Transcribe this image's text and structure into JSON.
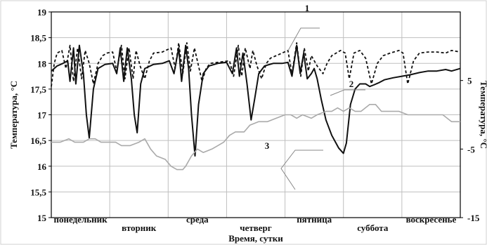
{
  "chart_data": {
    "type": "line",
    "xlabel": "Время, сутки",
    "ylabel_left": "Температура, °C",
    "ylabel_right": "Температура, °C",
    "y_left": {
      "min": 15,
      "max": 19,
      "ticks": [
        "15",
        "15,5",
        "16",
        "16,5",
        "17",
        "17,5",
        "18",
        "18,5",
        "19"
      ]
    },
    "y_right": {
      "min": -15,
      "max": 15,
      "ticks": [
        "-15",
        "-5",
        "5"
      ]
    },
    "x": {
      "min": 0,
      "max": 7
    },
    "days": [
      "понедельник",
      "вторник",
      "среда",
      "четверг",
      "пятница",
      "суббота",
      "воскресенье"
    ],
    "grid": true,
    "series": [
      {
        "name": "1",
        "axis": "left",
        "style": "dashed",
        "color": "#111111",
        "points": [
          [
            0,
            17.55
          ],
          [
            0.05,
            18.0
          ],
          [
            0.1,
            18.2
          ],
          [
            0.18,
            18.25
          ],
          [
            0.25,
            17.9
          ],
          [
            0.32,
            18.35
          ],
          [
            0.38,
            17.65
          ],
          [
            0.45,
            18.3
          ],
          [
            0.52,
            17.7
          ],
          [
            0.58,
            18.25
          ],
          [
            0.65,
            18.0
          ],
          [
            0.72,
            17.6
          ],
          [
            0.8,
            18.0
          ],
          [
            0.88,
            18.15
          ],
          [
            0.95,
            18.2
          ],
          [
            1.05,
            18.22
          ],
          [
            1.12,
            17.85
          ],
          [
            1.2,
            18.35
          ],
          [
            1.26,
            17.7
          ],
          [
            1.33,
            18.3
          ],
          [
            1.4,
            17.7
          ],
          [
            1.45,
            18.25
          ],
          [
            1.52,
            17.95
          ],
          [
            1.6,
            17.7
          ],
          [
            1.68,
            18.05
          ],
          [
            1.75,
            18.2
          ],
          [
            1.9,
            18.22
          ],
          [
            2.05,
            18.3
          ],
          [
            2.12,
            17.9
          ],
          [
            2.18,
            18.4
          ],
          [
            2.25,
            17.8
          ],
          [
            2.32,
            18.4
          ],
          [
            2.38,
            17.85
          ],
          [
            2.45,
            18.3
          ],
          [
            2.52,
            17.95
          ],
          [
            2.58,
            17.65
          ],
          [
            2.65,
            17.9
          ],
          [
            2.72,
            18.0
          ],
          [
            2.85,
            18.02
          ],
          [
            3.05,
            18.05
          ],
          [
            3.12,
            17.75
          ],
          [
            3.2,
            18.35
          ],
          [
            3.26,
            17.75
          ],
          [
            3.32,
            18.3
          ],
          [
            3.4,
            17.9
          ],
          [
            3.45,
            18.25
          ],
          [
            3.52,
            17.95
          ],
          [
            3.6,
            17.7
          ],
          [
            3.68,
            18.0
          ],
          [
            3.75,
            18.1
          ],
          [
            3.95,
            18.2
          ],
          [
            4.05,
            18.25
          ],
          [
            4.12,
            17.8
          ],
          [
            4.2,
            18.4
          ],
          [
            4.27,
            17.75
          ],
          [
            4.33,
            18.3
          ],
          [
            4.4,
            17.85
          ],
          [
            4.45,
            18.15
          ],
          [
            4.55,
            17.95
          ],
          [
            4.65,
            17.8
          ],
          [
            4.72,
            18.0
          ],
          [
            4.8,
            18.15
          ],
          [
            4.95,
            18.25
          ],
          [
            5.03,
            18.2
          ],
          [
            5.1,
            17.7
          ],
          [
            5.18,
            18.2
          ],
          [
            5.28,
            18.25
          ],
          [
            5.38,
            18.1
          ],
          [
            5.48,
            17.6
          ],
          [
            5.58,
            18.0
          ],
          [
            5.68,
            18.15
          ],
          [
            5.8,
            18.2
          ],
          [
            5.95,
            18.25
          ],
          [
            6.02,
            18.2
          ],
          [
            6.1,
            17.6
          ],
          [
            6.2,
            18.05
          ],
          [
            6.3,
            18.2
          ],
          [
            6.45,
            18.22
          ],
          [
            6.6,
            18.22
          ],
          [
            6.75,
            18.2
          ],
          [
            6.85,
            18.25
          ],
          [
            7.0,
            18.22
          ]
        ]
      },
      {
        "name": "2",
        "axis": "left",
        "style": "solid",
        "color": "#111111",
        "points": [
          [
            0,
            17.85
          ],
          [
            0.1,
            17.95
          ],
          [
            0.2,
            18.0
          ],
          [
            0.28,
            18.05
          ],
          [
            0.32,
            17.65
          ],
          [
            0.38,
            18.3
          ],
          [
            0.42,
            17.6
          ],
          [
            0.48,
            18.35
          ],
          [
            0.55,
            17.8
          ],
          [
            0.6,
            17.0
          ],
          [
            0.65,
            16.55
          ],
          [
            0.72,
            17.5
          ],
          [
            0.8,
            17.9
          ],
          [
            0.92,
            17.98
          ],
          [
            1.05,
            18.0
          ],
          [
            1.12,
            17.8
          ],
          [
            1.18,
            18.3
          ],
          [
            1.24,
            17.65
          ],
          [
            1.3,
            18.3
          ],
          [
            1.37,
            17.7
          ],
          [
            1.42,
            17.0
          ],
          [
            1.47,
            16.65
          ],
          [
            1.53,
            17.6
          ],
          [
            1.6,
            17.9
          ],
          [
            1.75,
            17.98
          ],
          [
            1.9,
            18.0
          ],
          [
            2.02,
            18.05
          ],
          [
            2.1,
            17.8
          ],
          [
            2.18,
            18.3
          ],
          [
            2.23,
            17.65
          ],
          [
            2.3,
            18.35
          ],
          [
            2.35,
            17.9
          ],
          [
            2.4,
            17.0
          ],
          [
            2.46,
            16.2
          ],
          [
            2.52,
            17.2
          ],
          [
            2.6,
            17.8
          ],
          [
            2.7,
            17.95
          ],
          [
            2.85,
            18.0
          ],
          [
            3.0,
            18.02
          ],
          [
            3.1,
            17.8
          ],
          [
            3.17,
            18.3
          ],
          [
            3.22,
            17.75
          ],
          [
            3.28,
            18.2
          ],
          [
            3.35,
            17.6
          ],
          [
            3.42,
            16.9
          ],
          [
            3.48,
            17.3
          ],
          [
            3.55,
            17.8
          ],
          [
            3.65,
            17.95
          ],
          [
            3.8,
            18.0
          ],
          [
            3.95,
            18.0
          ],
          [
            4.05,
            18.02
          ],
          [
            4.12,
            17.75
          ],
          [
            4.2,
            18.35
          ],
          [
            4.26,
            17.8
          ],
          [
            4.32,
            18.2
          ],
          [
            4.38,
            17.7
          ],
          [
            4.45,
            17.8
          ],
          [
            4.5,
            17.9
          ],
          [
            4.55,
            17.7
          ],
          [
            4.62,
            17.3
          ],
          [
            4.7,
            16.9
          ],
          [
            4.8,
            16.6
          ],
          [
            4.92,
            16.35
          ],
          [
            5.0,
            16.25
          ],
          [
            5.05,
            16.45
          ],
          [
            5.12,
            17.2
          ],
          [
            5.2,
            17.5
          ],
          [
            5.28,
            17.6
          ],
          [
            5.38,
            17.6
          ],
          [
            5.45,
            17.55
          ],
          [
            5.52,
            17.58
          ],
          [
            5.6,
            17.62
          ],
          [
            5.7,
            17.68
          ],
          [
            5.85,
            17.72
          ],
          [
            6.0,
            17.75
          ],
          [
            6.15,
            17.78
          ],
          [
            6.3,
            17.82
          ],
          [
            6.45,
            17.85
          ],
          [
            6.6,
            17.85
          ],
          [
            6.75,
            17.88
          ],
          [
            6.85,
            17.85
          ],
          [
            7.0,
            17.9
          ]
        ]
      },
      {
        "name": "3",
        "axis": "right",
        "style": "solid",
        "color": "#aaaaaa",
        "points": [
          [
            0,
            -4
          ],
          [
            0.15,
            -4
          ],
          [
            0.3,
            -3.5
          ],
          [
            0.4,
            -4
          ],
          [
            0.55,
            -4
          ],
          [
            0.65,
            -3.5
          ],
          [
            0.75,
            -3.5
          ],
          [
            0.85,
            -4
          ],
          [
            1.0,
            -4
          ],
          [
            1.1,
            -4
          ],
          [
            1.2,
            -4.5
          ],
          [
            1.35,
            -4.5
          ],
          [
            1.5,
            -4
          ],
          [
            1.6,
            -3.5
          ],
          [
            1.7,
            -5
          ],
          [
            1.8,
            -6
          ],
          [
            1.95,
            -6.5
          ],
          [
            2.05,
            -7.5
          ],
          [
            2.15,
            -8
          ],
          [
            2.25,
            -8
          ],
          [
            2.3,
            -7.5
          ],
          [
            2.4,
            -6
          ],
          [
            2.5,
            -5
          ],
          [
            2.6,
            -5.5
          ],
          [
            2.75,
            -5
          ],
          [
            2.85,
            -4.5
          ],
          [
            2.95,
            -4
          ],
          [
            3.05,
            -3
          ],
          [
            3.15,
            -2.5
          ],
          [
            3.3,
            -2.5
          ],
          [
            3.4,
            -1.5
          ],
          [
            3.55,
            -1
          ],
          [
            3.7,
            -1
          ],
          [
            3.85,
            -0.5
          ],
          [
            4.0,
            0
          ],
          [
            4.1,
            0
          ],
          [
            4.2,
            -0.5
          ],
          [
            4.3,
            0
          ],
          [
            4.45,
            -0.5
          ],
          [
            4.55,
            0
          ],
          [
            4.7,
            0.5
          ],
          [
            4.8,
            0.5
          ],
          [
            4.9,
            1
          ],
          [
            5.0,
            0.5
          ],
          [
            5.1,
            1
          ],
          [
            5.2,
            0.5
          ],
          [
            5.3,
            0.5
          ],
          [
            5.45,
            1.5
          ],
          [
            5.55,
            1.5
          ],
          [
            5.65,
            0.5
          ],
          [
            5.8,
            0.5
          ],
          [
            5.95,
            0.5
          ],
          [
            6.1,
            0
          ],
          [
            6.3,
            0
          ],
          [
            6.5,
            0
          ],
          [
            6.7,
            0
          ],
          [
            6.85,
            -1
          ],
          [
            7.0,
            -1
          ]
        ]
      }
    ],
    "callouts": [
      "1",
      "2",
      "3"
    ]
  }
}
